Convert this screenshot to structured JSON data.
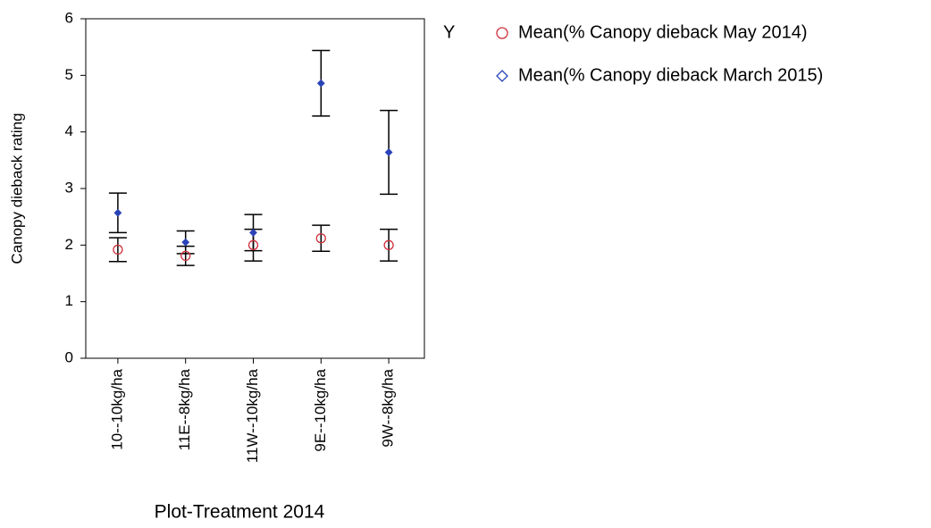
{
  "chart_data": {
    "type": "errorbar",
    "x_label": "Plot-Treatment 2014",
    "y_label": "Canopy dieback rating",
    "legend_title": "Y",
    "categories": [
      "10--10kg/ha",
      "11E--8kg/ha",
      "11W--10kg/ha",
      "9E--10kg/ha",
      "9W--8kg/ha"
    ],
    "series": [
      {
        "name": "Mean(% Canopy dieback May 2014)",
        "color": "#d0303c",
        "marker": "circle",
        "values": [
          1.92,
          1.81,
          2.0,
          2.12,
          2.0
        ],
        "errors": [
          0.21,
          0.17,
          0.28,
          0.23,
          0.28
        ]
      },
      {
        "name": "Mean(% Canopy dieback March 2015)",
        "color": "#2a44b8",
        "marker": "diamond",
        "values": [
          2.57,
          2.05,
          2.22,
          4.86,
          3.64
        ],
        "errors": [
          0.35,
          0.2,
          0.32,
          0.58,
          0.74
        ]
      }
    ],
    "ylim": [
      0,
      6
    ],
    "yticks": [
      0,
      1,
      2,
      3,
      4,
      5,
      6
    ],
    "grid": false,
    "legend": "right"
  }
}
